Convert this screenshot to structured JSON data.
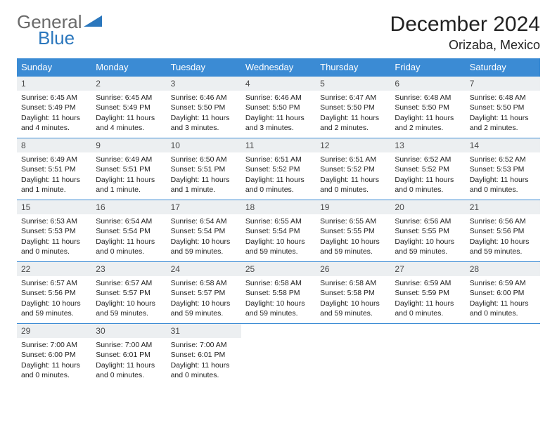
{
  "logo": {
    "word1": "General",
    "word2": "Blue"
  },
  "title": "December 2024",
  "subtitle": "Orizaba, Mexico",
  "colors": {
    "header_bg": "#3b8bd4",
    "header_fg": "#ffffff",
    "daynum_bg": "#eceff1",
    "rule": "#3b8bd4",
    "logo_general": "#6a6a6a",
    "logo_blue": "#2b77bd"
  },
  "day_names": [
    "Sunday",
    "Monday",
    "Tuesday",
    "Wednesday",
    "Thursday",
    "Friday",
    "Saturday"
  ],
  "weeks": [
    [
      {
        "n": "1",
        "sr": "Sunrise: 6:45 AM",
        "ss": "Sunset: 5:49 PM",
        "dl": "Daylight: 11 hours and 4 minutes."
      },
      {
        "n": "2",
        "sr": "Sunrise: 6:45 AM",
        "ss": "Sunset: 5:49 PM",
        "dl": "Daylight: 11 hours and 4 minutes."
      },
      {
        "n": "3",
        "sr": "Sunrise: 6:46 AM",
        "ss": "Sunset: 5:50 PM",
        "dl": "Daylight: 11 hours and 3 minutes."
      },
      {
        "n": "4",
        "sr": "Sunrise: 6:46 AM",
        "ss": "Sunset: 5:50 PM",
        "dl": "Daylight: 11 hours and 3 minutes."
      },
      {
        "n": "5",
        "sr": "Sunrise: 6:47 AM",
        "ss": "Sunset: 5:50 PM",
        "dl": "Daylight: 11 hours and 2 minutes."
      },
      {
        "n": "6",
        "sr": "Sunrise: 6:48 AM",
        "ss": "Sunset: 5:50 PM",
        "dl": "Daylight: 11 hours and 2 minutes."
      },
      {
        "n": "7",
        "sr": "Sunrise: 6:48 AM",
        "ss": "Sunset: 5:50 PM",
        "dl": "Daylight: 11 hours and 2 minutes."
      }
    ],
    [
      {
        "n": "8",
        "sr": "Sunrise: 6:49 AM",
        "ss": "Sunset: 5:51 PM",
        "dl": "Daylight: 11 hours and 1 minute."
      },
      {
        "n": "9",
        "sr": "Sunrise: 6:49 AM",
        "ss": "Sunset: 5:51 PM",
        "dl": "Daylight: 11 hours and 1 minute."
      },
      {
        "n": "10",
        "sr": "Sunrise: 6:50 AM",
        "ss": "Sunset: 5:51 PM",
        "dl": "Daylight: 11 hours and 1 minute."
      },
      {
        "n": "11",
        "sr": "Sunrise: 6:51 AM",
        "ss": "Sunset: 5:52 PM",
        "dl": "Daylight: 11 hours and 0 minutes."
      },
      {
        "n": "12",
        "sr": "Sunrise: 6:51 AM",
        "ss": "Sunset: 5:52 PM",
        "dl": "Daylight: 11 hours and 0 minutes."
      },
      {
        "n": "13",
        "sr": "Sunrise: 6:52 AM",
        "ss": "Sunset: 5:52 PM",
        "dl": "Daylight: 11 hours and 0 minutes."
      },
      {
        "n": "14",
        "sr": "Sunrise: 6:52 AM",
        "ss": "Sunset: 5:53 PM",
        "dl": "Daylight: 11 hours and 0 minutes."
      }
    ],
    [
      {
        "n": "15",
        "sr": "Sunrise: 6:53 AM",
        "ss": "Sunset: 5:53 PM",
        "dl": "Daylight: 11 hours and 0 minutes."
      },
      {
        "n": "16",
        "sr": "Sunrise: 6:54 AM",
        "ss": "Sunset: 5:54 PM",
        "dl": "Daylight: 11 hours and 0 minutes."
      },
      {
        "n": "17",
        "sr": "Sunrise: 6:54 AM",
        "ss": "Sunset: 5:54 PM",
        "dl": "Daylight: 10 hours and 59 minutes."
      },
      {
        "n": "18",
        "sr": "Sunrise: 6:55 AM",
        "ss": "Sunset: 5:54 PM",
        "dl": "Daylight: 10 hours and 59 minutes."
      },
      {
        "n": "19",
        "sr": "Sunrise: 6:55 AM",
        "ss": "Sunset: 5:55 PM",
        "dl": "Daylight: 10 hours and 59 minutes."
      },
      {
        "n": "20",
        "sr": "Sunrise: 6:56 AM",
        "ss": "Sunset: 5:55 PM",
        "dl": "Daylight: 10 hours and 59 minutes."
      },
      {
        "n": "21",
        "sr": "Sunrise: 6:56 AM",
        "ss": "Sunset: 5:56 PM",
        "dl": "Daylight: 10 hours and 59 minutes."
      }
    ],
    [
      {
        "n": "22",
        "sr": "Sunrise: 6:57 AM",
        "ss": "Sunset: 5:56 PM",
        "dl": "Daylight: 10 hours and 59 minutes."
      },
      {
        "n": "23",
        "sr": "Sunrise: 6:57 AM",
        "ss": "Sunset: 5:57 PM",
        "dl": "Daylight: 10 hours and 59 minutes."
      },
      {
        "n": "24",
        "sr": "Sunrise: 6:58 AM",
        "ss": "Sunset: 5:57 PM",
        "dl": "Daylight: 10 hours and 59 minutes."
      },
      {
        "n": "25",
        "sr": "Sunrise: 6:58 AM",
        "ss": "Sunset: 5:58 PM",
        "dl": "Daylight: 10 hours and 59 minutes."
      },
      {
        "n": "26",
        "sr": "Sunrise: 6:58 AM",
        "ss": "Sunset: 5:58 PM",
        "dl": "Daylight: 10 hours and 59 minutes."
      },
      {
        "n": "27",
        "sr": "Sunrise: 6:59 AM",
        "ss": "Sunset: 5:59 PM",
        "dl": "Daylight: 11 hours and 0 minutes."
      },
      {
        "n": "28",
        "sr": "Sunrise: 6:59 AM",
        "ss": "Sunset: 6:00 PM",
        "dl": "Daylight: 11 hours and 0 minutes."
      }
    ],
    [
      {
        "n": "29",
        "sr": "Sunrise: 7:00 AM",
        "ss": "Sunset: 6:00 PM",
        "dl": "Daylight: 11 hours and 0 minutes."
      },
      {
        "n": "30",
        "sr": "Sunrise: 7:00 AM",
        "ss": "Sunset: 6:01 PM",
        "dl": "Daylight: 11 hours and 0 minutes."
      },
      {
        "n": "31",
        "sr": "Sunrise: 7:00 AM",
        "ss": "Sunset: 6:01 PM",
        "dl": "Daylight: 11 hours and 0 minutes."
      },
      null,
      null,
      null,
      null
    ]
  ]
}
